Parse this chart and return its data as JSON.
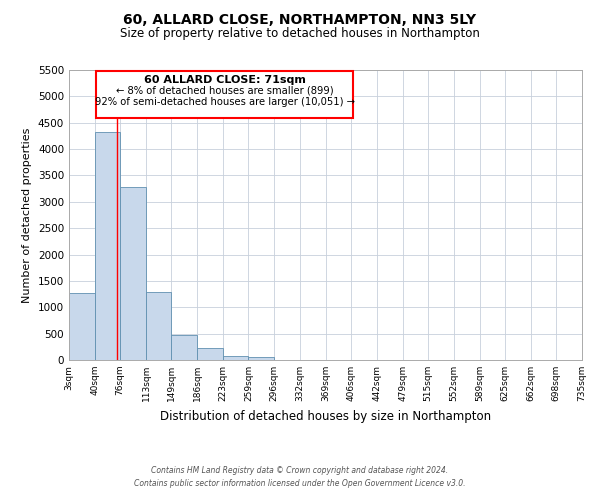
{
  "title": "60, ALLARD CLOSE, NORTHAMPTON, NN3 5LY",
  "subtitle": "Size of property relative to detached houses in Northampton",
  "xlabel": "Distribution of detached houses by size in Northampton",
  "ylabel": "Number of detached properties",
  "bar_color": "#c8d8eb",
  "bar_edge_color": "#6090b0",
  "bin_labels": [
    "3sqm",
    "40sqm",
    "76sqm",
    "113sqm",
    "149sqm",
    "186sqm",
    "223sqm",
    "259sqm",
    "296sqm",
    "332sqm",
    "369sqm",
    "406sqm",
    "442sqm",
    "479sqm",
    "515sqm",
    "552sqm",
    "589sqm",
    "625sqm",
    "662sqm",
    "698sqm",
    "735sqm"
  ],
  "bin_edges": [
    3,
    40,
    76,
    113,
    149,
    186,
    223,
    259,
    296,
    332,
    369,
    406,
    442,
    479,
    515,
    552,
    589,
    625,
    662,
    698,
    735
  ],
  "bar_heights": [
    1270,
    4330,
    3290,
    1290,
    480,
    235,
    85,
    50,
    0,
    0,
    0,
    0,
    0,
    0,
    0,
    0,
    0,
    0,
    0,
    0
  ],
  "ylim": [
    0,
    5500
  ],
  "yticks": [
    0,
    500,
    1000,
    1500,
    2000,
    2500,
    3000,
    3500,
    4000,
    4500,
    5000,
    5500
  ],
  "red_line_x": 71,
  "annotation_title": "60 ALLARD CLOSE: 71sqm",
  "annotation_line1": "← 8% of detached houses are smaller (899)",
  "annotation_line2": "92% of semi-detached houses are larger (10,051) →",
  "footer_line1": "Contains HM Land Registry data © Crown copyright and database right 2024.",
  "footer_line2": "Contains public sector information licensed under the Open Government Licence v3.0.",
  "background_color": "#ffffff",
  "grid_color": "#c8d0dc"
}
